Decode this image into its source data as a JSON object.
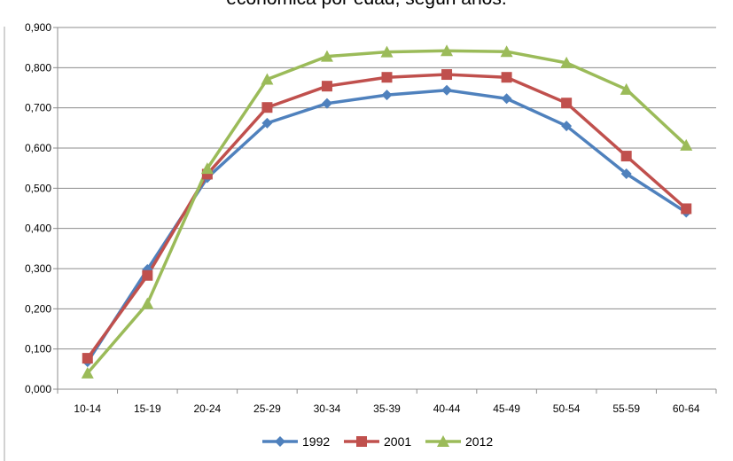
{
  "chart_data": {
    "type": "line",
    "title": "económica por edad, según años.",
    "xlabel": "",
    "ylabel": "",
    "categories": [
      "10-14",
      "15-19",
      "20-24",
      "25-29",
      "30-34",
      "35-39",
      "40-44",
      "45-49",
      "50-54",
      "55-59",
      "60-64"
    ],
    "ylim": [
      0,
      0.9
    ],
    "yticks": [
      "0,000",
      "0,100",
      "0,200",
      "0,300",
      "0,400",
      "0,500",
      "0,600",
      "0,700",
      "0,800",
      "0,900"
    ],
    "grid": true,
    "legend": "bottom",
    "series": [
      {
        "name": "1992",
        "color": "#4F81BD",
        "marker": "diamond",
        "values": [
          0.068,
          0.298,
          0.526,
          0.662,
          0.711,
          0.732,
          0.744,
          0.723,
          0.655,
          0.536,
          0.44
        ]
      },
      {
        "name": "2001",
        "color": "#C0504D",
        "marker": "square",
        "values": [
          0.077,
          0.283,
          0.535,
          0.701,
          0.754,
          0.776,
          0.783,
          0.776,
          0.712,
          0.58,
          0.449
        ]
      },
      {
        "name": "2012",
        "color": "#9BBB59",
        "marker": "triangle",
        "values": [
          0.04,
          0.213,
          0.549,
          0.771,
          0.828,
          0.839,
          0.842,
          0.84,
          0.812,
          0.746,
          0.607
        ]
      }
    ]
  }
}
